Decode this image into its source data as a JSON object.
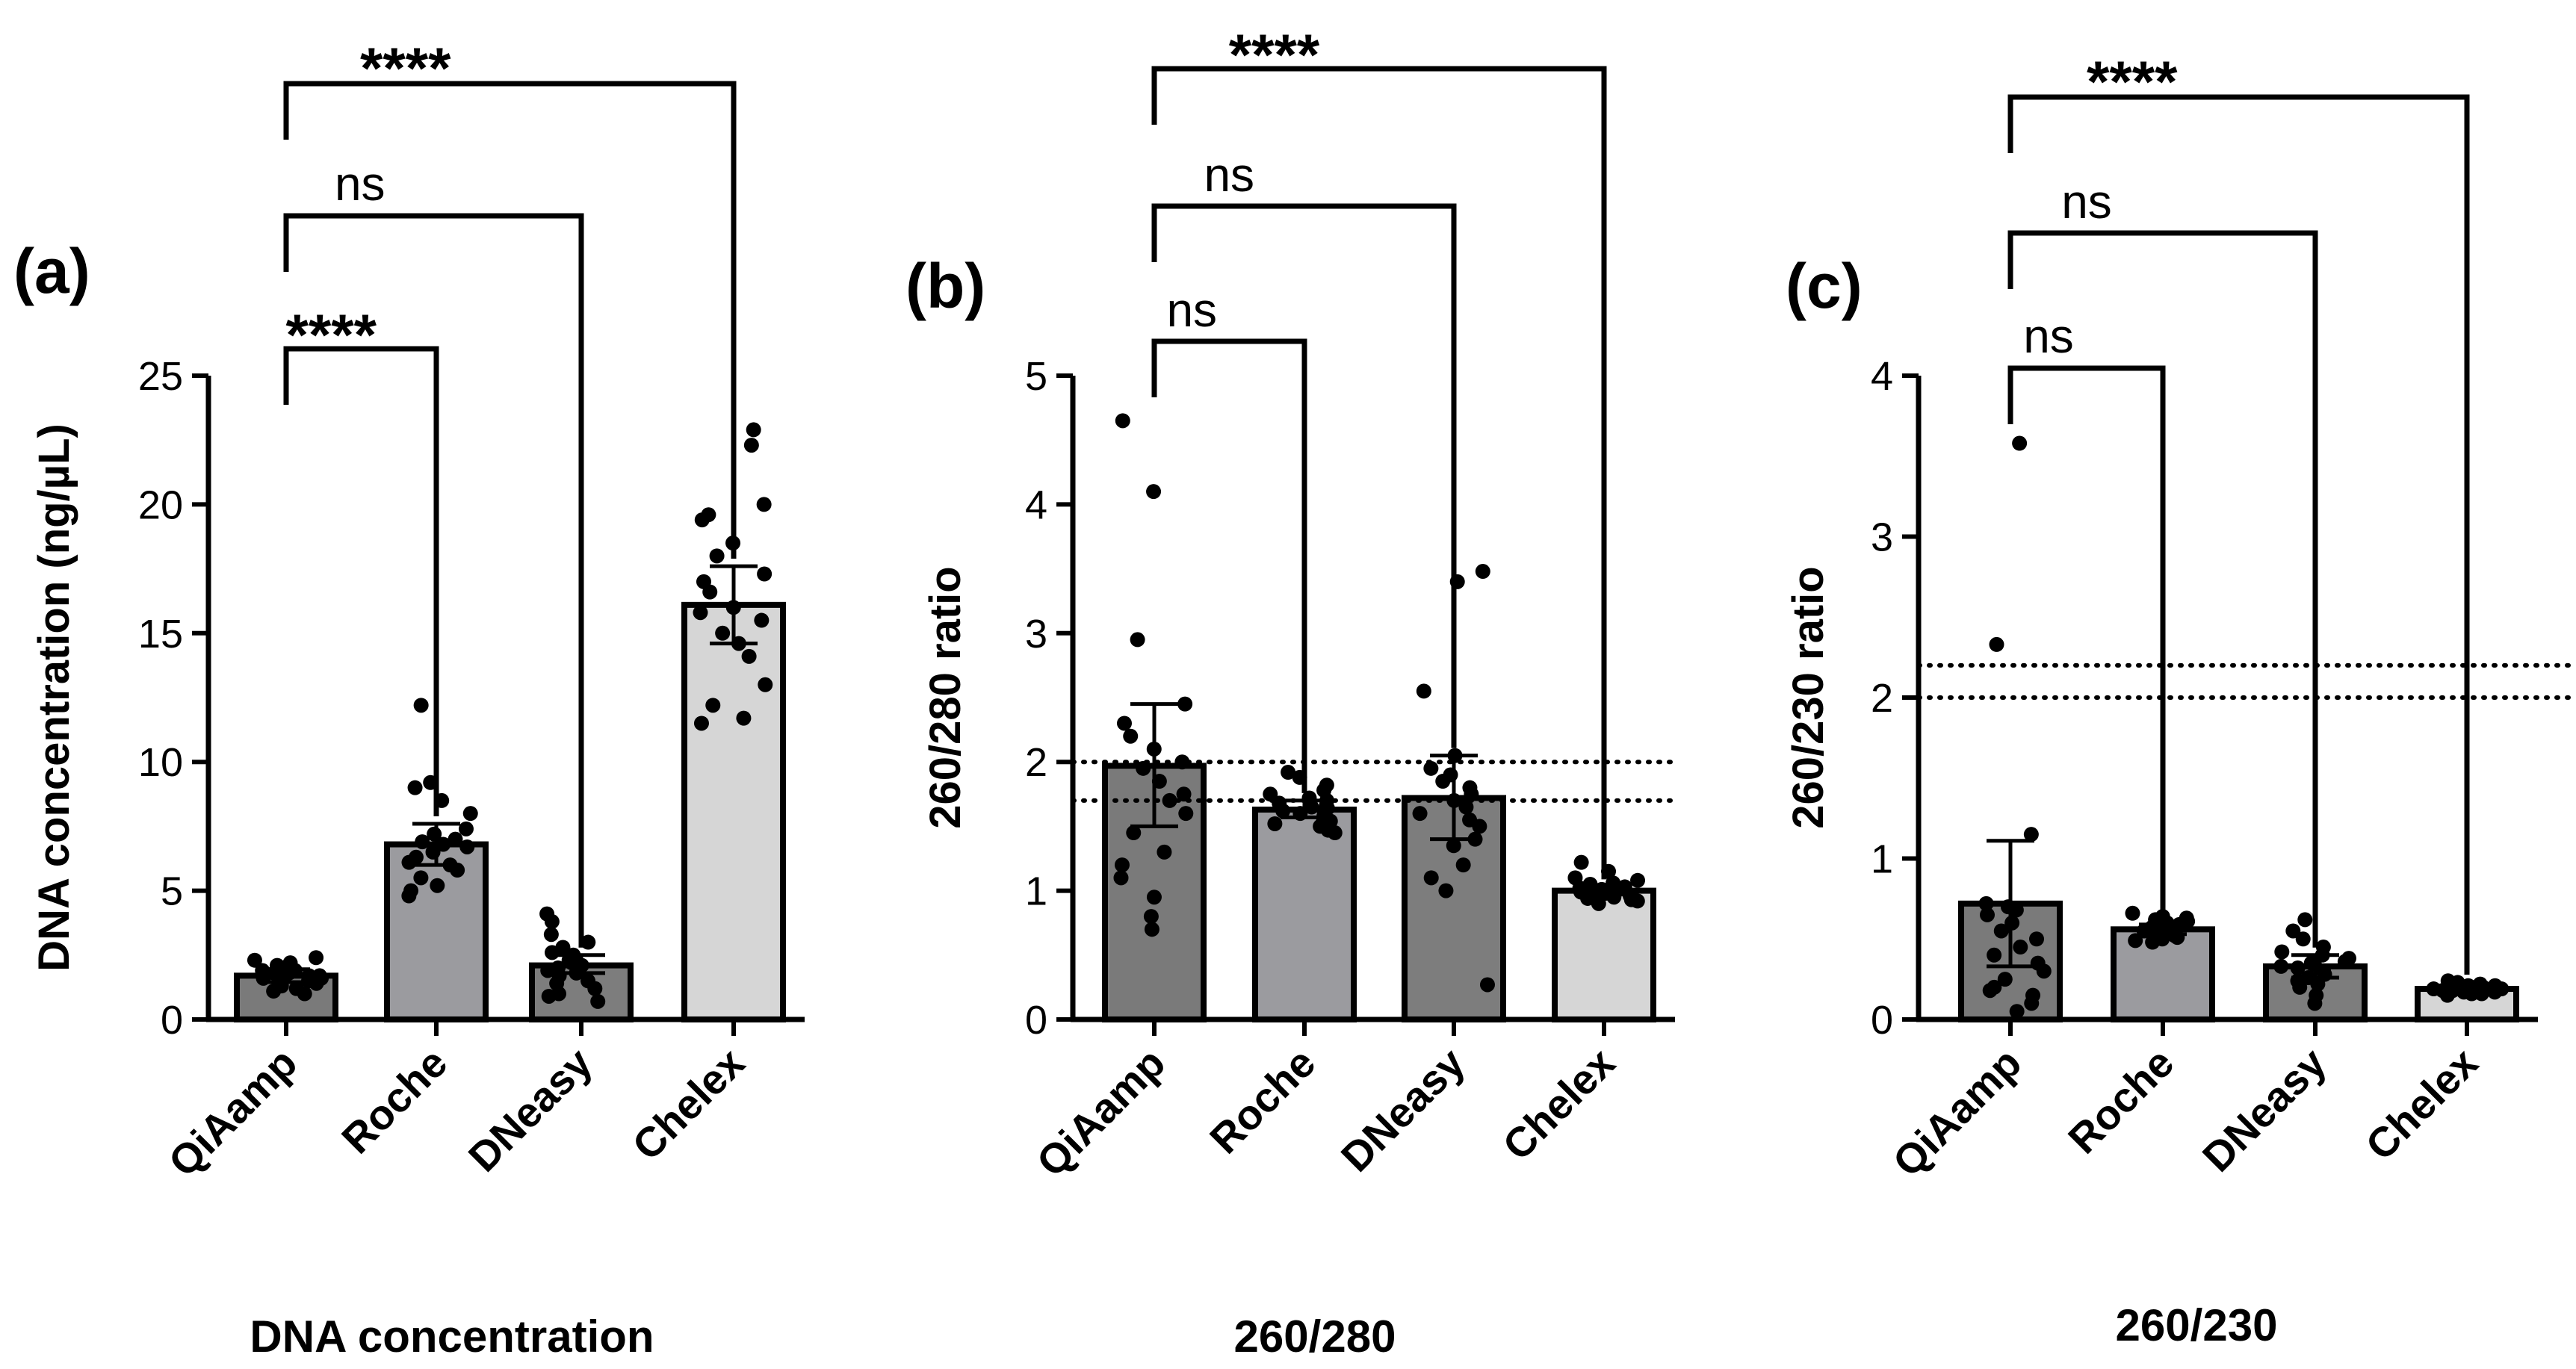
{
  "chart_data": [
    {
      "type": "bar",
      "panel": "(a)",
      "caption": "DNA concentration",
      "ylabel": "DNA concentration (ng/µL)",
      "ylim": [
        0,
        25
      ],
      "yticks": [
        0,
        5,
        10,
        15,
        20,
        25
      ],
      "categories": [
        "QiAamp",
        "Roche",
        "DNeasy",
        "Chelex"
      ],
      "bar_colors": [
        "#7a7a7a",
        "#9b9b9f",
        "#7d7d7d",
        "#d6d6d6"
      ],
      "values": [
        1.7,
        6.8,
        2.1,
        16.1
      ],
      "error": [
        [
          1.45,
          1.95
        ],
        [
          6.0,
          7.6
        ],
        [
          1.8,
          2.5
        ],
        [
          14.6,
          17.6
        ]
      ],
      "points": [
        [
          2.4,
          2.3,
          2.2,
          2.1,
          2.0,
          1.9,
          1.9,
          1.8,
          1.8,
          1.7,
          1.7,
          1.6,
          1.6,
          1.5,
          1.5,
          1.4,
          1.3,
          1.2,
          1.1,
          1.0
        ],
        [
          12.2,
          9.2,
          9.0,
          8.5,
          8.0,
          7.4,
          7.2,
          7.0,
          6.8,
          6.7,
          6.5,
          6.3,
          6.0,
          5.8,
          5.5,
          5.2,
          5.0,
          4.8,
          6.9,
          6.1
        ],
        [
          4.1,
          3.8,
          3.3,
          3.0,
          2.8,
          2.5,
          2.3,
          2.2,
          2.1,
          2.0,
          1.9,
          1.7,
          1.5,
          1.4,
          1.2,
          1.0,
          0.9,
          0.7,
          1.8,
          2.6
        ],
        [
          22.9,
          22.3,
          20.0,
          19.6,
          19.4,
          18.5,
          18.0,
          17.3,
          17.0,
          16.6,
          16.0,
          15.5,
          15.0,
          14.6,
          14.1,
          13.0,
          12.2,
          11.7,
          11.5,
          15.8
        ]
      ],
      "comparisons": [
        {
          "from": "QiAamp",
          "to": "Roche",
          "label": "****"
        },
        {
          "from": "QiAamp",
          "to": "DNeasy",
          "label": "ns"
        },
        {
          "from": "QiAamp",
          "to": "Chelex",
          "label": "****"
        }
      ],
      "reference_lines": []
    },
    {
      "type": "bar",
      "panel": "(b)",
      "caption": "260/280",
      "ylabel": "260/280 ratio",
      "ylim": [
        0,
        5
      ],
      "yticks": [
        0,
        1,
        2,
        3,
        4,
        5
      ],
      "categories": [
        "QiAamp",
        "Roche",
        "DNeasy",
        "Chelex"
      ],
      "bar_colors": [
        "#7a7a7a",
        "#9b9b9f",
        "#7d7d7d",
        "#d6d6d6"
      ],
      "values": [
        1.97,
        1.63,
        1.72,
        1.0
      ],
      "error": [
        [
          1.5,
          2.45
        ],
        [
          1.57,
          1.7
        ],
        [
          1.4,
          2.05
        ],
        [
          0.97,
          1.03
        ]
      ],
      "points": [
        [
          4.65,
          4.1,
          2.95,
          2.45,
          2.3,
          2.2,
          2.1,
          2.0,
          1.95,
          1.85,
          1.7,
          1.6,
          1.45,
          1.3,
          1.2,
          1.1,
          0.95,
          0.8,
          0.7,
          1.75
        ],
        [
          1.92,
          1.88,
          1.82,
          1.78,
          1.75,
          1.72,
          1.7,
          1.68,
          1.66,
          1.64,
          1.62,
          1.6,
          1.58,
          1.56,
          1.54,
          1.52,
          1.5,
          1.47,
          1.45,
          1.65
        ],
        [
          3.48,
          3.4,
          2.55,
          2.05,
          1.95,
          1.9,
          1.8,
          1.75,
          1.7,
          1.65,
          1.6,
          1.55,
          1.5,
          1.4,
          1.35,
          1.2,
          1.1,
          1.0,
          0.27,
          1.85
        ],
        [
          1.22,
          1.15,
          1.1,
          1.08,
          1.06,
          1.05,
          1.03,
          1.02,
          1.01,
          1.0,
          0.99,
          0.98,
          0.97,
          0.96,
          0.95,
          0.94,
          0.93,
          0.92,
          0.9,
          1.0
        ]
      ],
      "comparisons": [
        {
          "from": "QiAamp",
          "to": "Roche",
          "label": "ns"
        },
        {
          "from": "QiAamp",
          "to": "DNeasy",
          "label": "ns"
        },
        {
          "from": "QiAamp",
          "to": "Chelex",
          "label": "****"
        }
      ],
      "reference_lines": [
        2.0,
        1.7
      ]
    },
    {
      "type": "bar",
      "panel": "(c)",
      "caption": "260/230",
      "ylabel": "260/230 ratio",
      "ylim": [
        0,
        4
      ],
      "yticks": [
        0,
        1,
        2,
        3,
        4
      ],
      "categories": [
        "QiAamp",
        "Roche",
        "DNeasy",
        "Chelex"
      ],
      "bar_colors": [
        "#7a7a7a",
        "#9b9b9f",
        "#7d7d7d",
        "#d6d6d6"
      ],
      "values": [
        0.72,
        0.56,
        0.33,
        0.19
      ],
      "error": [
        [
          0.33,
          1.11
        ],
        [
          0.53,
          0.59
        ],
        [
          0.26,
          0.4
        ],
        [
          0.18,
          0.2
        ]
      ],
      "points": [
        [
          3.58,
          2.33,
          1.15,
          0.72,
          0.7,
          0.68,
          0.65,
          0.6,
          0.55,
          0.5,
          0.45,
          0.4,
          0.35,
          0.3,
          0.25,
          0.2,
          0.18,
          0.15,
          0.1,
          0.05
        ],
        [
          0.66,
          0.64,
          0.63,
          0.62,
          0.61,
          0.6,
          0.59,
          0.58,
          0.57,
          0.56,
          0.55,
          0.55,
          0.54,
          0.53,
          0.52,
          0.51,
          0.5,
          0.49,
          0.48,
          0.57
        ],
        [
          0.62,
          0.55,
          0.5,
          0.45,
          0.42,
          0.4,
          0.38,
          0.36,
          0.34,
          0.33,
          0.32,
          0.3,
          0.28,
          0.26,
          0.24,
          0.22,
          0.2,
          0.15,
          0.1,
          0.35
        ],
        [
          0.24,
          0.23,
          0.22,
          0.21,
          0.21,
          0.2,
          0.2,
          0.2,
          0.19,
          0.19,
          0.19,
          0.18,
          0.18,
          0.18,
          0.17,
          0.17,
          0.16,
          0.16,
          0.15,
          0.19
        ]
      ],
      "comparisons": [
        {
          "from": "QiAamp",
          "to": "Roche",
          "label": "ns"
        },
        {
          "from": "QiAamp",
          "to": "DNeasy",
          "label": "ns"
        },
        {
          "from": "QiAamp",
          "to": "Chelex",
          "label": "****"
        }
      ],
      "reference_lines": [
        2.2,
        2.0
      ]
    }
  ]
}
